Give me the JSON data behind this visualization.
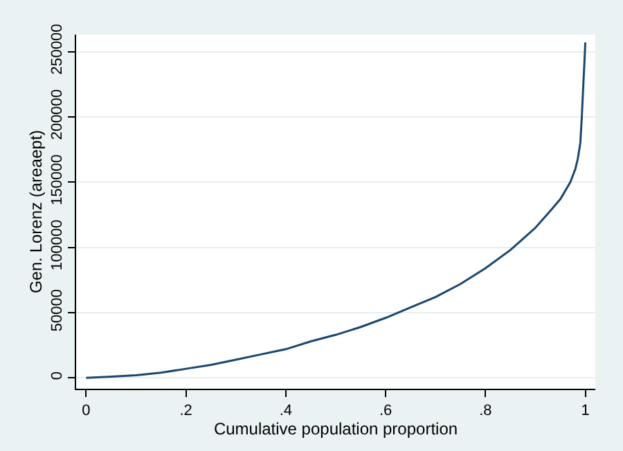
{
  "chart_data": {
    "type": "line",
    "xlabel": "Cumulative population proportion",
    "ylabel": "Gen. Lorenz (areaept)",
    "x": [
      0,
      0.05,
      0.1,
      0.15,
      0.2,
      0.25,
      0.3,
      0.35,
      0.4,
      0.45,
      0.5,
      0.55,
      0.6,
      0.65,
      0.7,
      0.75,
      0.8,
      0.85,
      0.9,
      0.93,
      0.95,
      0.97,
      0.98,
      0.985,
      0.99,
      0.993,
      0.996,
      0.998,
      1
    ],
    "series": [
      {
        "color": "#1a476f",
        "values": [
          0,
          1000,
          2000,
          4000,
          7000,
          10000,
          14000,
          18000,
          22000,
          28000,
          33000,
          39000,
          46000,
          54000,
          62000,
          72000,
          84000,
          98000,
          115000,
          128000,
          137000,
          150000,
          160000,
          168000,
          180000,
          200000,
          225000,
          240000,
          257000
        ]
      }
    ],
    "xlim": [
      -0.02,
      1.02
    ],
    "ylim": [
      -8300,
      263000
    ],
    "xticks": [
      {
        "value": 0,
        "label": "0"
      },
      {
        "value": 0.2,
        "label": ".2"
      },
      {
        "value": 0.4,
        "label": ".4"
      },
      {
        "value": 0.6,
        "label": ".6"
      },
      {
        "value": 0.8,
        "label": ".8"
      },
      {
        "value": 1,
        "label": "1"
      }
    ],
    "yticks": [
      0,
      50000,
      100000,
      150000,
      200000,
      250000
    ],
    "grid": "y",
    "marker": "none",
    "line_style": "solid"
  }
}
